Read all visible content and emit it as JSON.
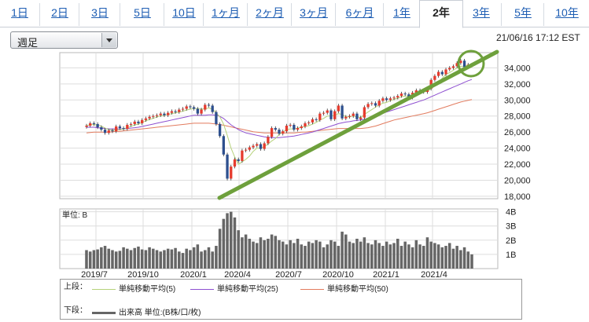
{
  "tabs": [
    {
      "label": "1日",
      "active": false
    },
    {
      "label": "2日",
      "active": false
    },
    {
      "label": "3日",
      "active": false
    },
    {
      "label": "5日",
      "active": false
    },
    {
      "label": "10日",
      "active": false
    },
    {
      "label": "1ヶ月",
      "active": false
    },
    {
      "label": "2ヶ月",
      "active": false
    },
    {
      "label": "3ヶ月",
      "active": false
    },
    {
      "label": "6ヶ月",
      "active": false
    },
    {
      "label": "1年",
      "active": false
    },
    {
      "label": "2年",
      "active": true
    },
    {
      "label": "3年",
      "active": false
    },
    {
      "label": "5年",
      "active": false
    },
    {
      "label": "10年",
      "active": false
    }
  ],
  "period_select": {
    "value": "週足"
  },
  "timestamp": "21/06/16 17:12 EST",
  "legend": {
    "upper_label": "上段：",
    "lower_label": "下段：",
    "ma5": "単純移動平均(5)",
    "ma25": "単純移動平均(25)",
    "ma50": "単純移動平均(50)",
    "volume": "出来高 単位:(B株/口/枚)"
  },
  "colors": {
    "up": "#e63b2e",
    "down": "#2d4f8e",
    "ma5": "#b6d27a",
    "ma25": "#8e4fd0",
    "ma50": "#e27b5e",
    "trendline": "#6ea03c",
    "volume": "#666666",
    "tab_link": "#1d5db3"
  },
  "chart_data": {
    "type": "candlestick",
    "title": "",
    "price_axis": {
      "ticks": [
        "34,000",
        "32,000",
        "30,000",
        "28,000",
        "26,000",
        "24,000",
        "22,000",
        "20,000",
        "18,000"
      ],
      "ylim": [
        17700,
        35900
      ]
    },
    "volume_axis": {
      "unit_label": "単位: B",
      "ticks": [
        "4B",
        "3B",
        "2B",
        "1B"
      ],
      "ylim": [
        0,
        4.2
      ]
    },
    "x_labels": [
      "2019/7",
      "2019/10",
      "2020/1",
      "2020/4",
      "2020/7",
      "2020/10",
      "2021/1",
      "2021/4"
    ],
    "annotations": [
      "green trendline from 2020/3 low to latest price",
      "green circle around latest candles"
    ],
    "weekly_close": [
      26800,
      27100,
      27000,
      26600,
      26300,
      25900,
      26200,
      26100,
      26700,
      26500,
      26400,
      26900,
      27000,
      27300,
      27100,
      27500,
      27700,
      27900,
      28000,
      28100,
      28300,
      28100,
      28400,
      28600,
      28500,
      28800,
      28900,
      29200,
      29100,
      28900,
      28300,
      28800,
      29400,
      29300,
      28500,
      27000,
      25500,
      23200,
      20200,
      21700,
      22600,
      22400,
      23700,
      23800,
      24100,
      24300,
      24500,
      23900,
      24600,
      25400,
      26500,
      26300,
      25800,
      26100,
      26800,
      26900,
      26300,
      26500,
      26700,
      27100,
      27200,
      27600,
      27500,
      28300,
      28400,
      28700,
      27600,
      28600,
      29300,
      27700,
      27900,
      28000,
      28300,
      27600,
      27800,
      29100,
      29500,
      29600,
      29300,
      29900,
      30200,
      30000,
      30200,
      30300,
      30500,
      30800,
      30700,
      30300,
      30900,
      31200,
      31100,
      31000,
      31400,
      32500,
      33000,
      33500,
      33200,
      33800,
      34000,
      34200,
      34600,
      34900,
      34100,
      34400,
      34300
    ],
    "ma5": [
      26800,
      26900,
      26950,
      26880,
      26750,
      26500,
      26300,
      26230,
      26300,
      26300,
      26400,
      26550,
      26700,
      26900,
      27000,
      27200,
      27400,
      27560,
      27700,
      27900,
      28000,
      28100,
      28200,
      28300,
      28400,
      28500,
      28600,
      28750,
      28850,
      28950,
      28900,
      28850,
      28900,
      29000,
      28850,
      28400,
      27900,
      27000,
      25600,
      24000,
      22900,
      22000,
      22300,
      22600,
      23000,
      23600,
      24000,
      24000,
      24200,
      24500,
      24900,
      25200,
      25700,
      26000,
      26300,
      26400,
      26400,
      26500,
      26600,
      26700,
      26800,
      27000,
      27200,
      27500,
      27700,
      28000,
      28000,
      28100,
      28300,
      28200,
      27900,
      27900,
      28000,
      27900,
      27800,
      28200,
      28500,
      28800,
      29100,
      29400,
      29600,
      29700,
      29900,
      30100,
      30200,
      30400,
      30500,
      30500,
      30600,
      30700,
      30900,
      31000,
      31100,
      31400,
      31800,
      32200,
      32700,
      33200,
      33400,
      33700,
      34000,
      34200,
      34200,
      34300,
      34300
    ],
    "ma25": [
      26600,
      26600,
      26600,
      26550,
      26500,
      26450,
      26400,
      26400,
      26400,
      26400,
      26400,
      26450,
      26500,
      26550,
      26600,
      26700,
      26800,
      26900,
      27000,
      27100,
      27200,
      27300,
      27400,
      27500,
      27600,
      27700,
      27800,
      27900,
      28000,
      28100,
      28100,
      28100,
      28100,
      28150,
      28150,
      28100,
      27950,
      27700,
      27300,
      26900,
      26600,
      26300,
      26100,
      25900,
      25800,
      25700,
      25600,
      25500,
      25400,
      25350,
      25300,
      25300,
      25300,
      25350,
      25400,
      25450,
      25500,
      25600,
      25700,
      25800,
      25900,
      26000,
      26150,
      26300,
      26450,
      26600,
      26750,
      26900,
      27050,
      27150,
      27250,
      27300,
      27400,
      27450,
      27500,
      27600,
      27750,
      27900,
      28050,
      28200,
      28350,
      28500,
      28650,
      28800,
      28950,
      29100,
      29250,
      29400,
      29550,
      29700,
      29850,
      30000,
      30200,
      30400,
      30600,
      30800,
      31000,
      31200,
      31400,
      31600,
      31800,
      32000,
      32200,
      32400,
      32550
    ],
    "ma50": [
      25900,
      25950,
      26000,
      26000,
      26000,
      26000,
      26000,
      26050,
      26100,
      26100,
      26150,
      26200,
      26250,
      26300,
      26350,
      26400,
      26450,
      26500,
      26550,
      26600,
      26650,
      26700,
      26750,
      26800,
      26850,
      26900,
      26950,
      27000,
      27050,
      27100,
      27100,
      27100,
      27100,
      27100,
      27050,
      27000,
      26950,
      26850,
      26750,
      26650,
      26550,
      26450,
      26350,
      26250,
      26150,
      26050,
      26000,
      25950,
      25900,
      25900,
      25900,
      25900,
      25900,
      25900,
      25900,
      25900,
      25900,
      25950,
      26000,
      26000,
      26050,
      26100,
      26150,
      26200,
      26250,
      26300,
      26350,
      26400,
      26450,
      26450,
      26450,
      26450,
      26450,
      26450,
      26450,
      26500,
      26550,
      26650,
      26750,
      26900,
      27050,
      27200,
      27350,
      27500,
      27600,
      27700,
      27800,
      27900,
      28000,
      28100,
      28200,
      28300,
      28400,
      28550,
      28700,
      28850,
      29000,
      29150,
      29300,
      29450,
      29600,
      29750,
      29850,
      29950,
      30050
    ],
    "weekly_volume": [
      1.3,
      1.2,
      1.3,
      1.35,
      1.5,
      1.6,
      1.4,
      1.3,
      1.2,
      1.25,
      1.5,
      1.4,
      1.3,
      1.45,
      1.55,
      1.35,
      1.3,
      1.5,
      1.4,
      1.3,
      1.2,
      1.3,
      1.4,
      1.35,
      1.45,
      1.2,
      1.1,
      1.4,
      1.3,
      1.5,
      1.7,
      1.2,
      1.3,
      1.5,
      1.2,
      1.6,
      2.8,
      3.5,
      3.9,
      4.0,
      3.6,
      2.7,
      2.2,
      2.4,
      2.1,
      1.9,
      1.8,
      2.2,
      2.0,
      2.1,
      2.4,
      2.3,
      2.0,
      1.9,
      1.7,
      2.0,
      1.8,
      2.1,
      1.7,
      1.6,
      1.9,
      1.8,
      2.0,
      1.9,
      1.5,
      1.7,
      2.0,
      1.9,
      1.6,
      2.6,
      2.4,
      1.9,
      1.8,
      2.1,
      1.9,
      2.2,
      1.8,
      1.7,
      2.0,
      1.8,
      1.6,
      1.9,
      1.7,
      1.8,
      2.1,
      1.6,
      1.9,
      1.7,
      1.5,
      2.0,
      1.7,
      1.6,
      2.2,
      1.9,
      1.8,
      1.7,
      1.5,
      1.6,
      1.8,
      1.4,
      1.6,
      1.3,
      1.5,
      1.2,
      1.0
    ]
  }
}
